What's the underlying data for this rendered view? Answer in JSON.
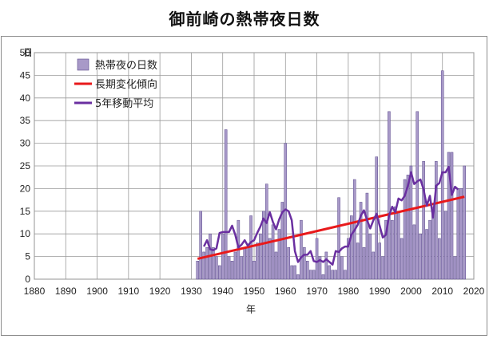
{
  "page": {
    "title": "御前崎の熱帯夜日数"
  },
  "chart_data": {
    "type": "bar",
    "title": "御前崎の熱帯夜日数",
    "xlabel": "年",
    "ylabel": "日",
    "xlim": [
      1880,
      2020
    ],
    "ylim": [
      0,
      50
    ],
    "x_ticks": [
      "1880",
      "1890",
      "1900",
      "1910",
      "1920",
      "1930",
      "1940",
      "1950",
      "1960",
      "1970",
      "1980",
      "1990",
      "2000",
      "2010",
      "2020"
    ],
    "y_ticks": [
      "0",
      "5",
      "10",
      "15",
      "20",
      "25",
      "30",
      "35",
      "40",
      "45",
      "50"
    ],
    "grid": true,
    "legend_position": "top-left",
    "colors": {
      "bar": "#a899c8",
      "bar_edge": "#5b4a8c",
      "trend": "#e8191b",
      "moving_avg": "#6a2fa0"
    },
    "series": [
      {
        "name": "熱帯夜の日数",
        "kind": "bar",
        "x": [
          1932,
          1933,
          1934,
          1935,
          1936,
          1937,
          1938,
          1939,
          1940,
          1941,
          1942,
          1943,
          1944,
          1945,
          1946,
          1947,
          1948,
          1949,
          1950,
          1951,
          1952,
          1953,
          1954,
          1955,
          1956,
          1957,
          1958,
          1959,
          1960,
          1961,
          1962,
          1963,
          1964,
          1965,
          1966,
          1967,
          1968,
          1969,
          1970,
          1971,
          1972,
          1973,
          1974,
          1975,
          1976,
          1977,
          1978,
          1979,
          1980,
          1981,
          1982,
          1983,
          1984,
          1985,
          1986,
          1987,
          1988,
          1989,
          1990,
          1991,
          1992,
          1993,
          1994,
          1995,
          1996,
          1997,
          1998,
          1999,
          2000,
          2001,
          2002,
          2003,
          2004,
          2005,
          2006,
          2007,
          2008,
          2009,
          2010,
          2011,
          2012,
          2013,
          2014,
          2015,
          2016,
          2017
        ],
        "values": [
          4,
          15,
          6,
          7,
          10,
          7,
          5,
          3,
          10,
          33,
          5,
          4,
          6,
          13,
          5,
          7,
          7,
          14,
          4,
          8,
          10,
          15,
          21,
          9,
          12,
          6,
          11,
          17,
          30,
          7,
          3,
          3,
          1,
          13,
          7,
          4,
          2,
          2,
          9,
          5,
          1,
          6,
          3,
          2,
          2,
          18,
          5,
          2,
          9,
          14,
          22,
          8,
          17,
          7,
          19,
          10,
          6,
          27,
          8,
          5,
          13,
          37,
          13,
          16,
          15,
          9,
          22,
          23,
          25,
          12,
          37,
          10,
          26,
          11,
          13,
          16,
          26,
          9,
          46,
          15,
          28,
          28,
          5,
          20,
          20,
          25
        ]
      },
      {
        "name": "長期変化傾向",
        "kind": "line",
        "x": [
          1932,
          2017
        ],
        "values": [
          4.5,
          18.2
        ]
      },
      {
        "name": "5年移動平均",
        "kind": "line",
        "x": [
          1934,
          1935,
          1936,
          1937,
          1938,
          1939,
          1940,
          1941,
          1942,
          1943,
          1944,
          1945,
          1946,
          1947,
          1948,
          1949,
          1950,
          1951,
          1952,
          1953,
          1954,
          1955,
          1956,
          1957,
          1958,
          1959,
          1960,
          1961,
          1962,
          1963,
          1964,
          1965,
          1966,
          1967,
          1968,
          1969,
          1970,
          1971,
          1972,
          1973,
          1974,
          1975,
          1976,
          1977,
          1978,
          1979,
          1980,
          1981,
          1982,
          1983,
          1984,
          1985,
          1986,
          1987,
          1988,
          1989,
          1990,
          1991,
          1992,
          1993,
          1994,
          1995,
          1996,
          1997,
          1998,
          1999,
          2000,
          2001,
          2002,
          2003,
          2004,
          2005,
          2006,
          2007,
          2008,
          2009,
          2010,
          2011,
          2012,
          2013,
          2014,
          2015
        ],
        "values": [
          7.2,
          8.6,
          6.6,
          6.4,
          6.8,
          10.2,
          10.4,
          10.4,
          10.4,
          11.8,
          9.8,
          7.0,
          7.6,
          8.6,
          7.4,
          8.2,
          8.6,
          10.2,
          11.6,
          13.4,
          12.4,
          14.8,
          12.6,
          11.0,
          13.2,
          14.8,
          15.4,
          15.0,
          13.0,
          6.2,
          3.8,
          4.8,
          5.4,
          5.4,
          6.2,
          4.0,
          3.8,
          4.2,
          3.8,
          4.4,
          3.8,
          3.2,
          6.2,
          6.0,
          6.8,
          7.2,
          7.2,
          9.8,
          10.8,
          12.0,
          14.0,
          15.2,
          13.0,
          11.2,
          13.0,
          14.4,
          11.8,
          9.2,
          9.8,
          14.0,
          16.0,
          14.8,
          17.8,
          17.4,
          18.4,
          20.6,
          23.6,
          21.0,
          21.6,
          22.0,
          19.8,
          16.2,
          18.4,
          13.6,
          20.6,
          21.2,
          23.6,
          23.6,
          24.8,
          18.6,
          20.4,
          19.8
        ]
      }
    ]
  }
}
